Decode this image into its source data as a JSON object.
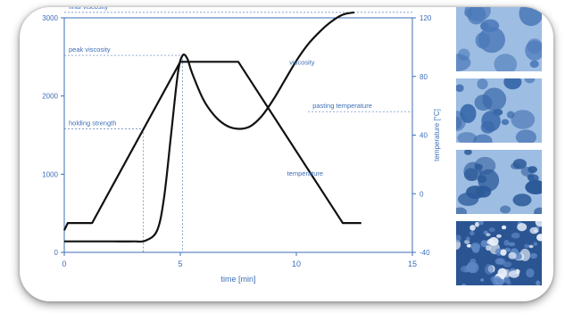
{
  "chart_data": {
    "type": "line",
    "xlabel": "time [min]",
    "ylabel_left": "",
    "ylabel_right": "temperature [°C]",
    "xlim": [
      0,
      15
    ],
    "ylim_left": [
      0,
      3000
    ],
    "ylim_right": [
      -40,
      120
    ],
    "x_ticks": [
      "0",
      "5",
      "10",
      "15"
    ],
    "y_left_ticks": [
      "0",
      "1000",
      "2000",
      "3000"
    ],
    "y_right_ticks": [
      "-40",
      "0",
      "40",
      "80",
      "120"
    ],
    "series": [
      {
        "name": "viscosity",
        "axis": "left",
        "x": [
          0,
          1,
          2,
          3,
          3.5,
          4,
          4.3,
          4.6,
          4.9,
          5.1,
          5.3,
          5.5,
          6,
          6.5,
          7,
          7.5,
          8,
          8.5,
          9,
          9.5,
          10,
          10.5,
          11,
          11.5,
          12,
          12.5
        ],
        "y": [
          140,
          140,
          140,
          140,
          150,
          280,
          700,
          1500,
          2300,
          2520,
          2480,
          2300,
          1950,
          1740,
          1620,
          1580,
          1610,
          1740,
          1950,
          2200,
          2450,
          2660,
          2820,
          2950,
          3040,
          3070
        ]
      },
      {
        "name": "temperature",
        "axis": "right",
        "x": [
          0,
          0.15,
          1.2,
          5,
          7.5,
          12,
          12.8
        ],
        "y": [
          -25,
          -20,
          -20,
          90,
          90,
          -20,
          -20
        ]
      }
    ],
    "annotations": [
      {
        "text": "final viscosity",
        "value": 3070,
        "axis": "left"
      },
      {
        "text": "peak viscosity",
        "value": 2520,
        "axis": "left"
      },
      {
        "text": "holding strength",
        "value": 1580,
        "axis": "left"
      },
      {
        "text": "pasting temperature",
        "value": 56,
        "axis": "right"
      },
      {
        "text": "viscosity",
        "series": "viscosity"
      },
      {
        "text": "temperature",
        "series": "temperature"
      }
    ]
  },
  "thumbnails": [
    {
      "name": "granule-micrograph-1",
      "color": "#4a78b8"
    },
    {
      "name": "granule-micrograph-2",
      "color": "#3a69ab"
    },
    {
      "name": "granule-micrograph-3",
      "color": "#2c5a99"
    },
    {
      "name": "granule-micrograph-4",
      "color": "#1d4888"
    }
  ],
  "colors": {
    "axis": "#3d6fb6",
    "tick_text": "#3d6fb6",
    "curve": "#111111",
    "guide": "#5a7fc0"
  }
}
